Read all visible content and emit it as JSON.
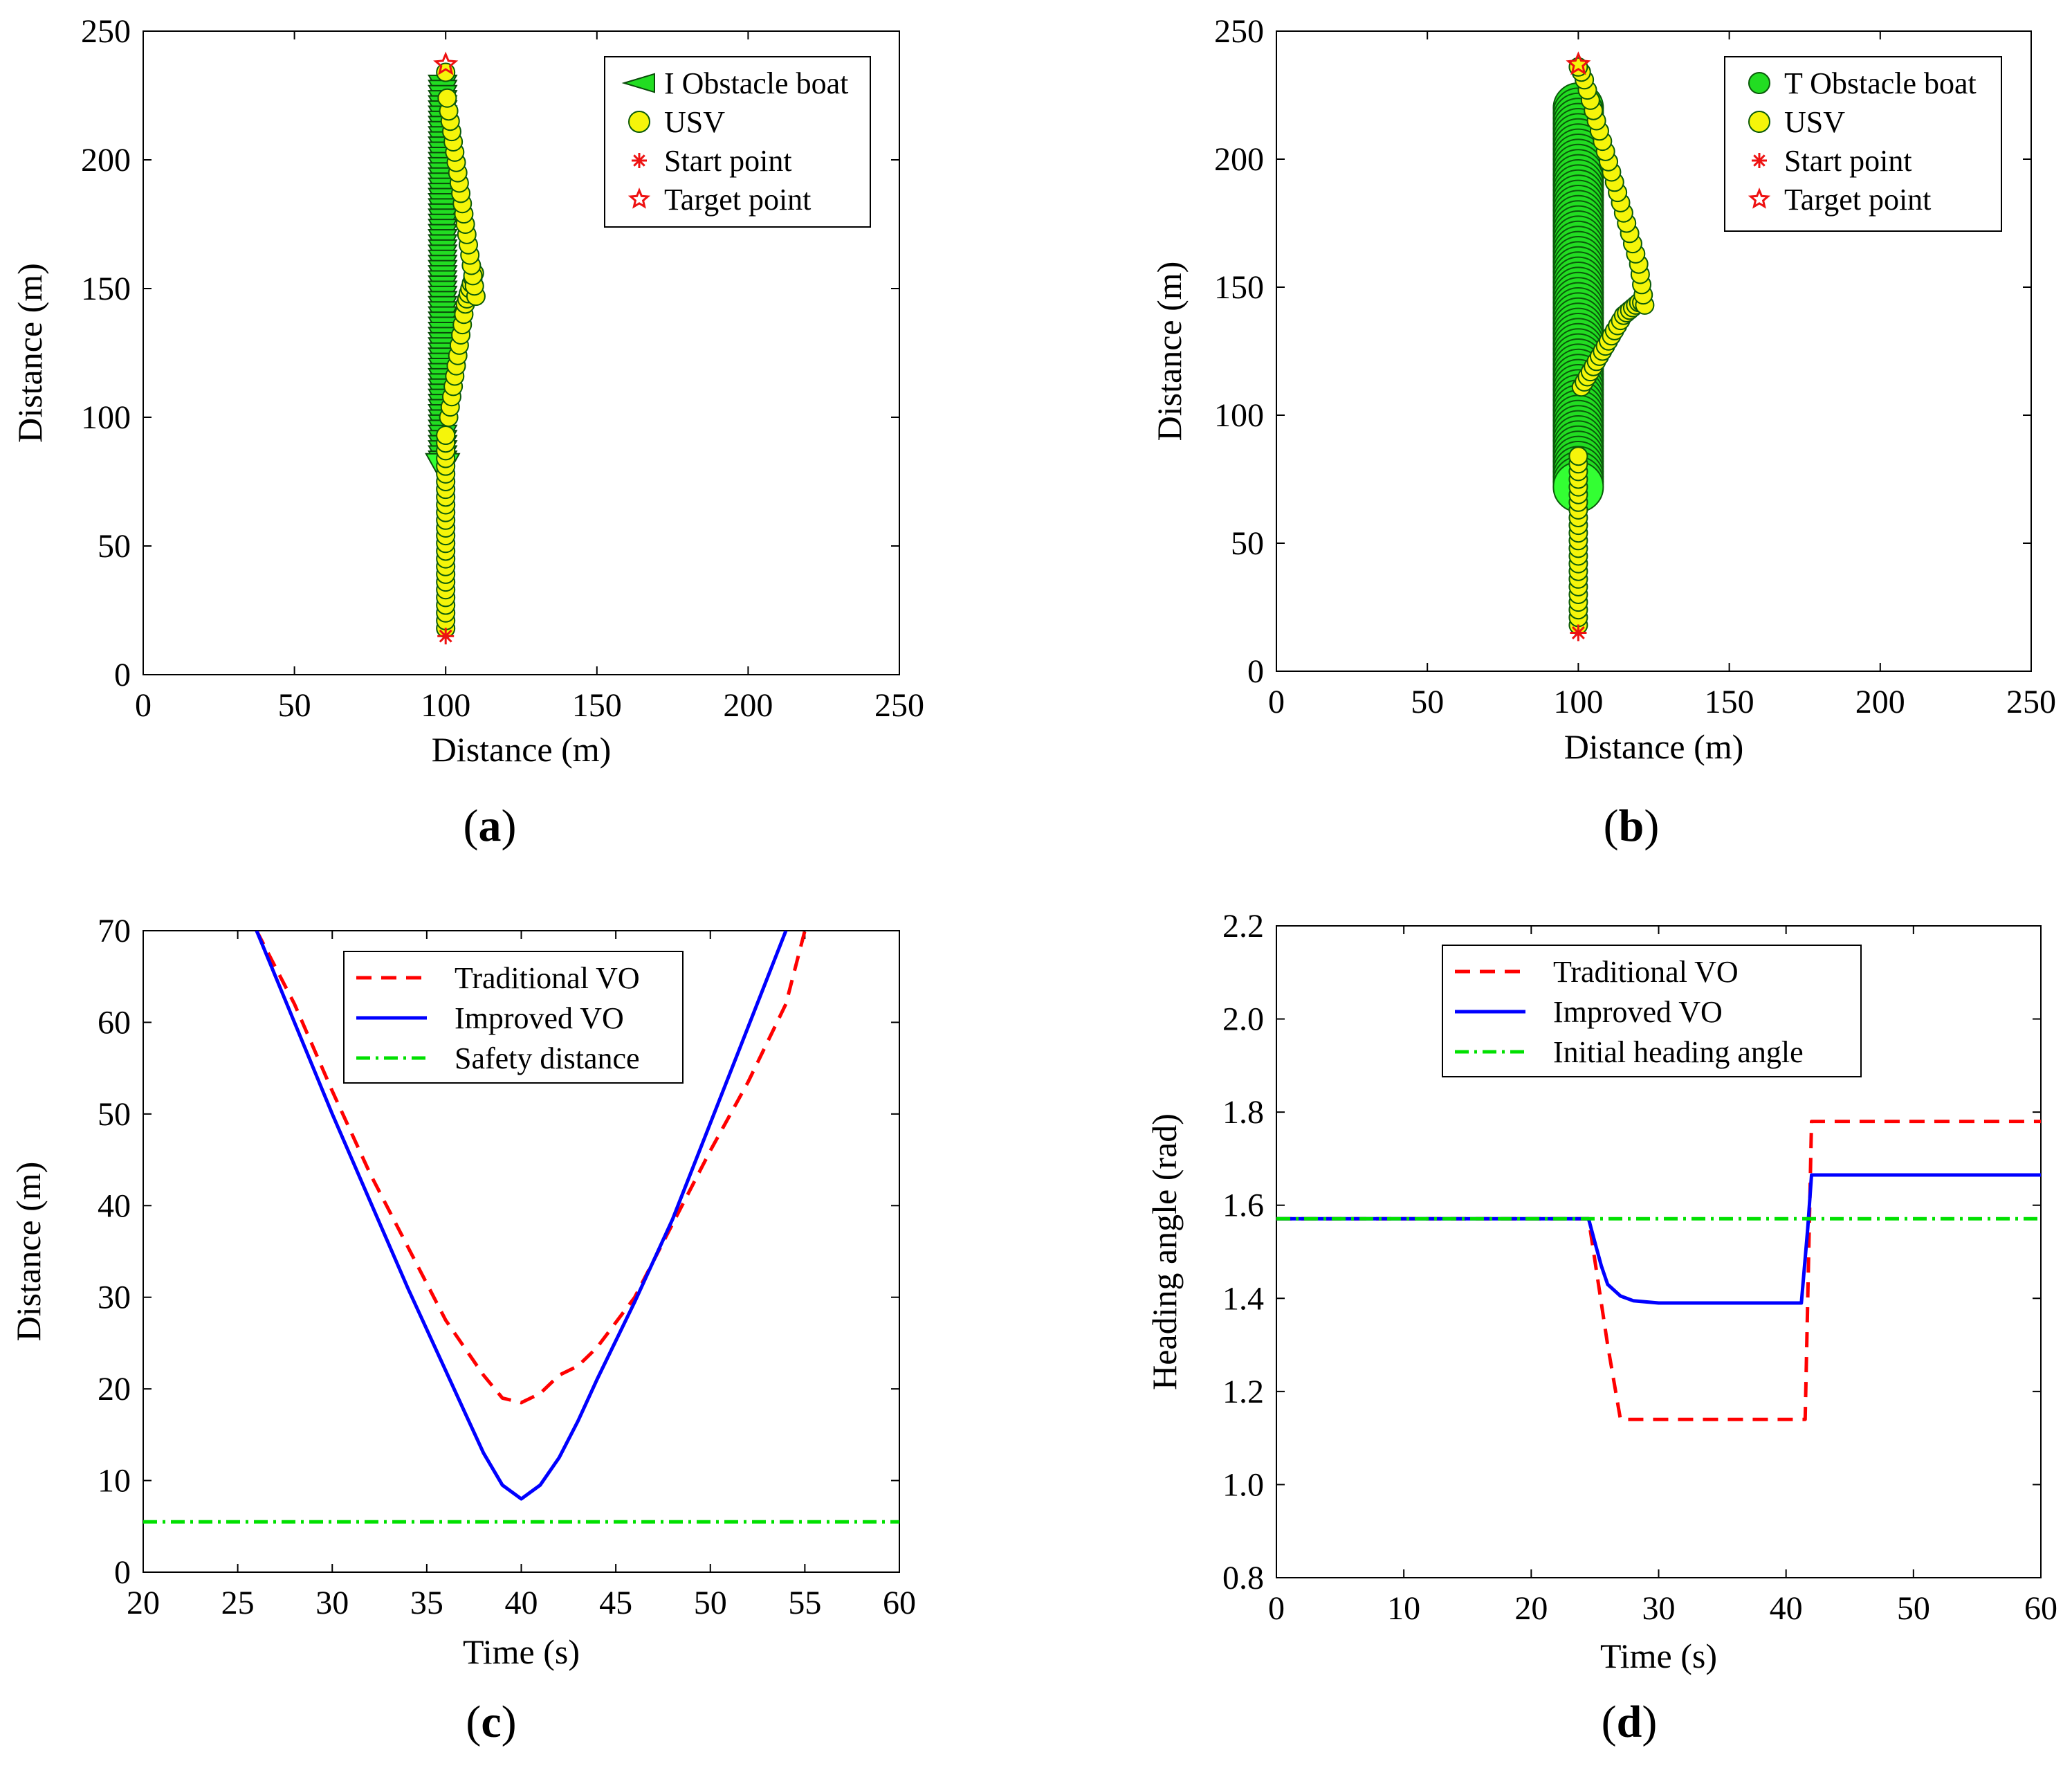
{
  "chart_data": [
    {
      "id": "a",
      "type": "scatter",
      "panel_label": "a",
      "xlabel": "Distance (m)",
      "ylabel": "Distance (m)",
      "xlim": [
        0,
        250
      ],
      "ylim": [
        0,
        250
      ],
      "xticks": [
        "0",
        "50",
        "100",
        "150",
        "200",
        "250"
      ],
      "yticks": [
        "0",
        "50",
        "100",
        "150",
        "200",
        "250"
      ],
      "legend": [
        "I Obstacle boat",
        "USV",
        "Start point",
        "Target point"
      ],
      "legend_position": "top-right",
      "series": [
        {
          "name": "I Obstacle boat",
          "marker": "triangle",
          "color": "#22dd22",
          "x": [
            99,
            99,
            99,
            99,
            99,
            99,
            99,
            99,
            99,
            99,
            99,
            99,
            99,
            99,
            99,
            99,
            99,
            99,
            99,
            99,
            99,
            99,
            99,
            99,
            99,
            99,
            99,
            99,
            99,
            99,
            99,
            99,
            99,
            99,
            99,
            99,
            99,
            99,
            99,
            99,
            99,
            99,
            99,
            99,
            99,
            99,
            99,
            99,
            99,
            99,
            99,
            99,
            99,
            99,
            99,
            99,
            99,
            99,
            99,
            99,
            99,
            99,
            99,
            99,
            99,
            99,
            99,
            99,
            99,
            99,
            99,
            99,
            99,
            99,
            99
          ],
          "y": [
            228,
            226,
            224,
            222,
            220,
            218,
            216,
            214,
            212,
            210,
            208,
            206,
            204,
            202,
            200,
            198,
            196,
            194,
            192,
            190,
            188,
            186,
            184,
            182,
            180,
            178,
            176,
            174,
            172,
            170,
            168,
            166,
            164,
            162,
            160,
            158,
            156,
            154,
            152,
            150,
            148,
            146,
            144,
            142,
            140,
            138,
            136,
            134,
            132,
            130,
            128,
            126,
            124,
            122,
            120,
            118,
            116,
            114,
            112,
            110,
            108,
            106,
            104,
            102,
            100,
            98,
            96,
            94,
            92,
            90,
            88,
            86,
            84,
            82,
            80
          ]
        },
        {
          "name": "USV",
          "marker": "circle",
          "color": "#f5f50a",
          "x": [
            100,
            100,
            100,
            100,
            100,
            100,
            100,
            100,
            100,
            100,
            100,
            100,
            100,
            100,
            100,
            100,
            100,
            100,
            100,
            100,
            100,
            100,
            100,
            100,
            100,
            100,
            101,
            101.5,
            102,
            102.5,
            103,
            103.5,
            104,
            104.5,
            105,
            105.5,
            106,
            106.5,
            107,
            107.5,
            108,
            108.5,
            109,
            109.5,
            110,
            109.5,
            109,
            108.5,
            108,
            107.5,
            107,
            106.5,
            106,
            105.5,
            105,
            104.5,
            104,
            103.5,
            103,
            102.5,
            102,
            101.5,
            101,
            100.5,
            100
          ],
          "y": [
            18,
            21,
            24,
            27,
            30,
            33,
            36,
            39,
            42,
            45,
            48,
            51,
            54,
            57,
            60,
            63,
            66,
            69,
            72,
            75,
            78,
            81,
            84,
            87,
            90,
            93,
            100,
            104,
            108,
            112,
            116,
            120,
            124,
            128,
            132,
            136,
            140,
            144,
            146,
            148,
            150,
            152,
            154,
            156,
            147,
            151,
            155,
            159,
            163,
            167,
            171,
            175,
            179,
            183,
            187,
            191,
            195,
            199,
            203,
            207,
            211,
            215,
            219,
            224,
            234
          ]
        },
        {
          "name": "Start point",
          "marker": "asterisk",
          "color": "#ee1111",
          "x": [
            100
          ],
          "y": [
            15
          ]
        },
        {
          "name": "Target point",
          "marker": "star",
          "color": "#ee1111",
          "x": [
            100
          ],
          "y": [
            237
          ]
        }
      ]
    },
    {
      "id": "b",
      "type": "scatter",
      "panel_label": "b",
      "xlabel": "Distance (m)",
      "ylabel": "Distance (m)",
      "xlim": [
        0,
        250
      ],
      "ylim": [
        0,
        250
      ],
      "xticks": [
        "0",
        "50",
        "100",
        "150",
        "200",
        "250"
      ],
      "yticks": [
        "0",
        "50",
        "100",
        "150",
        "200",
        "250"
      ],
      "legend": [
        "T Obstacle boat",
        "USV",
        "Start point",
        "Target point"
      ],
      "legend_position": "top-right",
      "series": [
        {
          "name": "T Obstacle boat",
          "marker": "circle",
          "color": "#22dd22",
          "x": [
            100,
            100,
            100,
            100,
            100,
            100,
            100,
            100,
            100,
            100,
            100,
            100,
            100,
            100,
            100,
            100,
            100,
            100,
            100,
            100,
            100,
            100,
            100,
            100,
            100,
            100,
            100,
            100,
            100,
            100,
            100,
            100,
            100,
            100,
            100,
            100,
            100,
            100,
            100,
            100,
            100,
            100,
            100,
            100,
            100,
            100,
            100,
            100,
            100,
            100,
            100,
            100,
            100,
            100,
            100,
            100,
            100,
            100,
            100,
            100,
            100,
            100,
            100,
            100,
            100,
            100,
            100,
            100,
            100,
            100,
            100,
            100,
            100,
            100,
            100
          ],
          "y": [
            220,
            218,
            216,
            214,
            212,
            210,
            208,
            206,
            204,
            202,
            200,
            198,
            196,
            194,
            192,
            190,
            188,
            186,
            184,
            182,
            180,
            178,
            176,
            174,
            172,
            170,
            168,
            166,
            164,
            162,
            160,
            158,
            156,
            154,
            152,
            150,
            148,
            146,
            144,
            142,
            140,
            138,
            136,
            134,
            132,
            130,
            128,
            126,
            124,
            122,
            120,
            118,
            116,
            114,
            112,
            110,
            108,
            106,
            104,
            102,
            100,
            98,
            96,
            94,
            92,
            90,
            88,
            86,
            84,
            82,
            80,
            78,
            76,
            74,
            72
          ]
        },
        {
          "name": "USV",
          "marker": "circle",
          "color": "#f5f50a",
          "x": [
            100,
            100,
            100,
            100,
            100,
            100,
            100,
            100,
            100,
            100,
            100,
            100,
            100,
            100,
            100,
            100,
            100,
            100,
            100,
            100,
            100,
            100,
            100,
            101,
            102,
            103,
            104,
            105,
            106,
            107,
            108,
            109,
            110,
            111,
            112,
            113,
            114,
            115,
            116,
            117,
            118,
            119,
            120,
            121,
            122,
            121.5,
            121,
            120.5,
            120,
            119,
            118,
            117,
            116,
            115,
            114,
            113,
            112,
            111,
            110,
            109,
            108,
            107,
            106,
            105,
            104,
            103,
            102,
            101,
            100
          ],
          "y": [
            18,
            21,
            24,
            27,
            30,
            33,
            36,
            39,
            42,
            45,
            48,
            51,
            54,
            57,
            60,
            63,
            66,
            69,
            72,
            75,
            78,
            81,
            84,
            111,
            113,
            115,
            117,
            119,
            121,
            123,
            125,
            127,
            129,
            131,
            133,
            135,
            137,
            139,
            140,
            141,
            142,
            143,
            144,
            144,
            143,
            147,
            151,
            155,
            159,
            163,
            167,
            171,
            175,
            179,
            183,
            187,
            191,
            195,
            199,
            203,
            207,
            211,
            215,
            219,
            223,
            227,
            231,
            234,
            236
          ]
        },
        {
          "name": "Start point",
          "marker": "asterisk",
          "color": "#ee1111",
          "x": [
            100
          ],
          "y": [
            15
          ]
        },
        {
          "name": "Target point",
          "marker": "star",
          "color": "#ee1111",
          "x": [
            100
          ],
          "y": [
            237
          ]
        }
      ]
    },
    {
      "id": "c",
      "type": "line",
      "panel_label": "c",
      "xlabel": "Time (s)",
      "ylabel": "Distance (m)",
      "xlim": [
        20,
        60
      ],
      "ylim": [
        0,
        70
      ],
      "xticks": [
        "20",
        "25",
        "30",
        "35",
        "40",
        "45",
        "50",
        "55",
        "60"
      ],
      "yticks": [
        "0",
        "10",
        "20",
        "30",
        "40",
        "50",
        "60",
        "70"
      ],
      "legend": [
        "Traditional VO",
        "Improved VO",
        "Safety distance"
      ],
      "legend_position": "top-center",
      "series": [
        {
          "name": "Traditional VO",
          "style": "dashed",
          "color": "#ff0000",
          "x": [
            26,
            28,
            30,
            32,
            34,
            36,
            38,
            39,
            40,
            41,
            42,
            43,
            44,
            46,
            48,
            50,
            52,
            54,
            55
          ],
          "y": [
            70,
            62,
            52.5,
            43.5,
            35.5,
            27.5,
            21.5,
            19,
            18.5,
            19.5,
            21.5,
            22.5,
            24.5,
            30,
            38,
            46,
            53.5,
            62,
            70
          ]
        },
        {
          "name": "Improved VO",
          "style": "solid",
          "color": "#0000ff",
          "x": [
            26,
            28,
            30,
            32,
            34,
            36,
            37,
            38,
            39,
            40,
            41,
            42,
            43,
            44,
            46,
            48,
            50,
            52,
            54
          ],
          "y": [
            70,
            60,
            50,
            40.5,
            31,
            22,
            17.5,
            13,
            9.5,
            8,
            9.5,
            12.5,
            16.5,
            21,
            29.5,
            38.5,
            49,
            59.5,
            70
          ]
        },
        {
          "name": "Safety distance",
          "style": "dashdot",
          "color": "#00e000",
          "x": [
            20,
            60
          ],
          "y": [
            5.5,
            5.5
          ]
        }
      ]
    },
    {
      "id": "d",
      "type": "line",
      "panel_label": "d",
      "xlabel": "Time (s)",
      "ylabel": "Heading angle  (rad)",
      "xlim": [
        0,
        60
      ],
      "ylim": [
        0.8,
        2.2
      ],
      "xticks": [
        "0",
        "10",
        "20",
        "30",
        "40",
        "50",
        "60"
      ],
      "yticks": [
        "0.8",
        "1.0",
        "1.2",
        "1.4",
        "1.6",
        "1.8",
        "2.0",
        "2.2"
      ],
      "legend": [
        "Traditional VO",
        "Improved VO",
        "Initial heading angle"
      ],
      "legend_position": "top-center",
      "series": [
        {
          "name": "Traditional VO",
          "style": "dashed",
          "color": "#ff0000",
          "x": [
            0,
            24.5,
            26,
            27,
            41.5,
            42,
            60
          ],
          "y": [
            1.571,
            1.571,
            1.3,
            1.14,
            1.14,
            1.78,
            1.78
          ]
        },
        {
          "name": "Improved VO",
          "style": "solid",
          "color": "#0000ff",
          "x": [
            0,
            24.5,
            25,
            25.5,
            26,
            27,
            28,
            30,
            35,
            41.2,
            41.7,
            42,
            60
          ],
          "y": [
            1.571,
            1.571,
            1.52,
            1.47,
            1.43,
            1.405,
            1.395,
            1.39,
            1.39,
            1.39,
            1.55,
            1.665,
            1.665
          ]
        },
        {
          "name": "Initial heading angle",
          "style": "dashdot",
          "color": "#00e000",
          "x": [
            0,
            60
          ],
          "y": [
            1.571,
            1.571
          ]
        }
      ]
    }
  ]
}
